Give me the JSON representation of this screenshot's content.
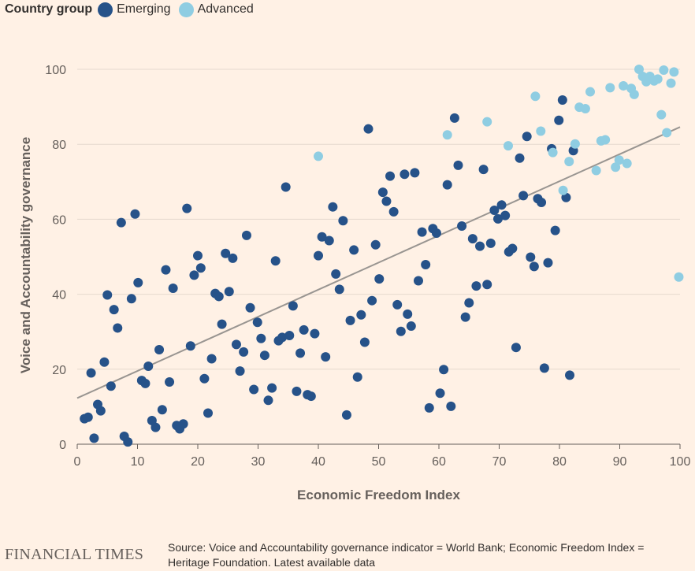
{
  "legend": {
    "title": "Country group",
    "items": [
      {
        "label": "Emerging",
        "color": "#265289"
      },
      {
        "label": "Advanced",
        "color": "#8fcde2"
      }
    ]
  },
  "footer": {
    "brand": "FINANCIAL TIMES",
    "source": "Source: Voice and Accountability governance indicator = World Bank; Economic Freedom Index = Heritage Foundation. Latest available data"
  },
  "chart_data": {
    "type": "scatter",
    "title": "",
    "xlabel": "Economic Freedom Index",
    "ylabel": "Voice and Accountability governance",
    "xlim": [
      0,
      100
    ],
    "ylim": [
      0,
      100
    ],
    "xticks": [
      0,
      10,
      20,
      30,
      40,
      50,
      60,
      70,
      80,
      90,
      100
    ],
    "yticks": [
      0,
      20,
      40,
      60,
      80,
      100
    ],
    "grid": "horizontal",
    "trendline": {
      "x": [
        0,
        100
      ],
      "y": [
        12.3,
        84.6
      ],
      "color": "#999591"
    },
    "series": [
      {
        "name": "Emerging",
        "color": "#265289",
        "points": [
          [
            1.2,
            6.8
          ],
          [
            1.8,
            7.2
          ],
          [
            2.3,
            19.0
          ],
          [
            2.8,
            1.6
          ],
          [
            3.4,
            10.6
          ],
          [
            3.9,
            8.9
          ],
          [
            4.5,
            21.9
          ],
          [
            5.0,
            39.8
          ],
          [
            5.6,
            15.5
          ],
          [
            6.1,
            35.9
          ],
          [
            6.7,
            31.0
          ],
          [
            7.3,
            59.1
          ],
          [
            7.8,
            2.1
          ],
          [
            8.4,
            0.6
          ],
          [
            9.0,
            38.8
          ],
          [
            9.6,
            61.4
          ],
          [
            10.1,
            43.1
          ],
          [
            10.7,
            17.0
          ],
          [
            11.3,
            16.2
          ],
          [
            11.8,
            20.8
          ],
          [
            12.4,
            6.3
          ],
          [
            13.0,
            4.5
          ],
          [
            13.6,
            25.2
          ],
          [
            14.1,
            9.2
          ],
          [
            14.7,
            46.5
          ],
          [
            15.3,
            16.6
          ],
          [
            15.9,
            41.6
          ],
          [
            16.5,
            5.0
          ],
          [
            17.0,
            4.1
          ],
          [
            17.6,
            5.4
          ],
          [
            18.2,
            62.9
          ],
          [
            18.8,
            26.2
          ],
          [
            19.4,
            45.1
          ],
          [
            20.0,
            50.3
          ],
          [
            20.5,
            47.0
          ],
          [
            21.1,
            17.5
          ],
          [
            21.7,
            8.3
          ],
          [
            22.3,
            22.8
          ],
          [
            22.9,
            40.2
          ],
          [
            23.5,
            39.4
          ],
          [
            24.0,
            32.0
          ],
          [
            24.6,
            50.9
          ],
          [
            25.2,
            40.7
          ],
          [
            25.8,
            49.6
          ],
          [
            26.4,
            26.6
          ],
          [
            27.0,
            19.5
          ],
          [
            27.6,
            24.6
          ],
          [
            28.1,
            55.7
          ],
          [
            28.7,
            36.4
          ],
          [
            29.3,
            14.6
          ],
          [
            29.9,
            32.5
          ],
          [
            30.5,
            28.2
          ],
          [
            31.1,
            23.7
          ],
          [
            31.7,
            11.7
          ],
          [
            32.3,
            15.0
          ],
          [
            32.9,
            48.9
          ],
          [
            33.4,
            27.6
          ],
          [
            34.0,
            28.5
          ],
          [
            34.6,
            68.6
          ],
          [
            35.2,
            29.0
          ],
          [
            35.8,
            36.9
          ],
          [
            36.4,
            14.1
          ],
          [
            37.0,
            24.3
          ],
          [
            37.6,
            30.5
          ],
          [
            38.2,
            13.2
          ],
          [
            38.8,
            12.8
          ],
          [
            39.4,
            29.5
          ],
          [
            40.0,
            50.3
          ],
          [
            40.6,
            55.3
          ],
          [
            41.2,
            23.3
          ],
          [
            41.8,
            54.3
          ],
          [
            42.4,
            63.3
          ],
          [
            42.9,
            45.4
          ],
          [
            43.5,
            41.3
          ],
          [
            44.1,
            59.6
          ],
          [
            44.7,
            7.8
          ],
          [
            45.3,
            33.0
          ],
          [
            45.9,
            51.8
          ],
          [
            46.5,
            17.9
          ],
          [
            47.1,
            34.5
          ],
          [
            47.7,
            27.2
          ],
          [
            48.3,
            84.1
          ],
          [
            48.9,
            38.3
          ],
          [
            49.5,
            53.2
          ],
          [
            50.1,
            44.1
          ],
          [
            50.7,
            67.2
          ],
          [
            51.3,
            64.8
          ],
          [
            51.9,
            71.5
          ],
          [
            52.5,
            62.0
          ],
          [
            53.1,
            37.2
          ],
          [
            53.7,
            30.1
          ],
          [
            54.3,
            72.0
          ],
          [
            54.8,
            34.7
          ],
          [
            55.4,
            31.5
          ],
          [
            56.0,
            72.4
          ],
          [
            56.6,
            43.6
          ],
          [
            57.2,
            56.6
          ],
          [
            57.8,
            47.9
          ],
          [
            58.4,
            9.7
          ],
          [
            59.0,
            57.5
          ],
          [
            59.6,
            56.3
          ],
          [
            60.2,
            13.6
          ],
          [
            60.8,
            19.9
          ],
          [
            61.4,
            69.2
          ],
          [
            62.0,
            10.1
          ],
          [
            62.6,
            87.0
          ],
          [
            63.2,
            74.4
          ],
          [
            63.8,
            58.2
          ],
          [
            64.4,
            33.9
          ],
          [
            65.0,
            37.7
          ],
          [
            65.6,
            54.8
          ],
          [
            66.2,
            42.2
          ],
          [
            66.8,
            52.8
          ],
          [
            67.4,
            73.3
          ],
          [
            68.0,
            42.6
          ],
          [
            68.6,
            53.6
          ],
          [
            69.2,
            62.4
          ],
          [
            69.8,
            60.1
          ],
          [
            70.4,
            63.8
          ],
          [
            71.0,
            61.0
          ],
          [
            71.6,
            51.3
          ],
          [
            72.2,
            52.2
          ],
          [
            72.8,
            25.8
          ],
          [
            73.4,
            76.3
          ],
          [
            74.0,
            66.3
          ],
          [
            74.6,
            82.1
          ],
          [
            75.2,
            49.9
          ],
          [
            75.8,
            47.4
          ],
          [
            76.4,
            65.5
          ],
          [
            77.0,
            64.5
          ],
          [
            77.5,
            20.3
          ],
          [
            78.1,
            48.4
          ],
          [
            78.7,
            78.8
          ],
          [
            79.3,
            57.0
          ],
          [
            79.9,
            86.4
          ],
          [
            80.5,
            91.8
          ],
          [
            81.1,
            65.8
          ],
          [
            81.7,
            18.4
          ],
          [
            82.3,
            78.3
          ]
        ]
      },
      {
        "name": "Advanced",
        "color": "#8fcde2",
        "points": [
          [
            40.0,
            76.8
          ],
          [
            61.4,
            82.5
          ],
          [
            68.0,
            86.0
          ],
          [
            71.5,
            79.6
          ],
          [
            76.0,
            92.8
          ],
          [
            76.9,
            83.5
          ],
          [
            78.9,
            77.8
          ],
          [
            80.6,
            67.7
          ],
          [
            81.6,
            75.4
          ],
          [
            82.6,
            80.1
          ],
          [
            83.3,
            89.9
          ],
          [
            84.3,
            89.5
          ],
          [
            85.1,
            94.0
          ],
          [
            86.1,
            73.0
          ],
          [
            86.9,
            80.9
          ],
          [
            87.6,
            81.2
          ],
          [
            88.4,
            95.1
          ],
          [
            89.3,
            73.9
          ],
          [
            89.9,
            75.8
          ],
          [
            90.6,
            95.6
          ],
          [
            91.2,
            74.9
          ],
          [
            91.9,
            94.9
          ],
          [
            92.4,
            93.3
          ],
          [
            93.2,
            100.0
          ],
          [
            93.8,
            98.1
          ],
          [
            94.4,
            96.7
          ],
          [
            95.0,
            98.1
          ],
          [
            95.7,
            96.9
          ],
          [
            96.3,
            97.4
          ],
          [
            96.9,
            87.9
          ],
          [
            97.3,
            99.8
          ],
          [
            97.8,
            83.1
          ],
          [
            98.5,
            96.3
          ],
          [
            99.0,
            99.3
          ],
          [
            99.8,
            44.6
          ]
        ]
      }
    ]
  }
}
